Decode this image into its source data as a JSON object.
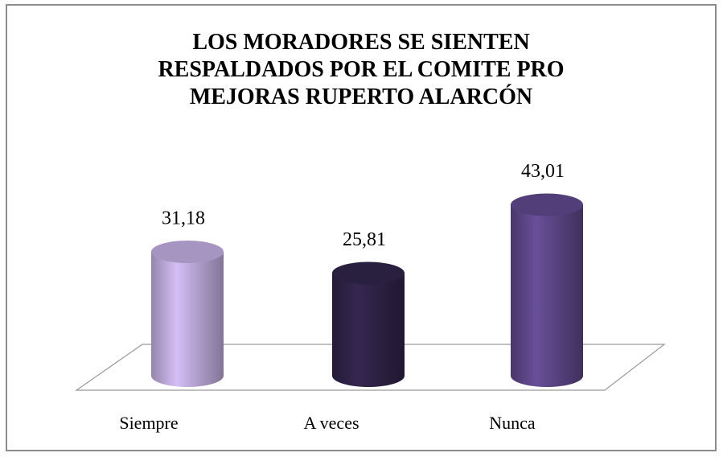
{
  "chart_data": {
    "type": "bar",
    "title": "LOS MORADORES SE SIENTEN RESPALDADOS POR EL COMITE PRO MEJORAS RUPERTO ALARCÓN",
    "categories": [
      "Siempre",
      "A veces",
      "Nunca"
    ],
    "values": [
      31.18,
      25.81,
      43.01
    ],
    "value_labels": [
      "31,18",
      "25,81",
      "43,01"
    ],
    "colors": [
      "#b9a6d6",
      "#2e2245",
      "#5b4585"
    ]
  }
}
